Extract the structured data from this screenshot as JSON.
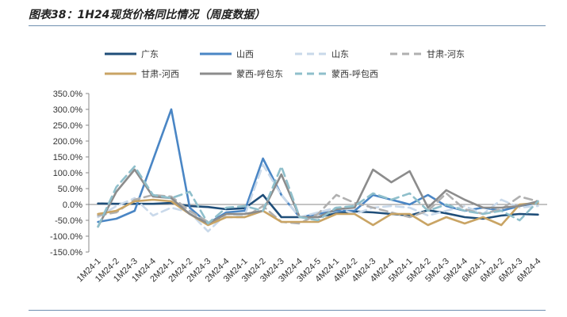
{
  "page": {
    "title": "图表38：1H24现货价格同比情况（周度数据）"
  },
  "chart_data": {
    "type": "line",
    "title": "图表38：1H24现货价格同比情况（周度数据）",
    "xlabel": "",
    "ylabel": "",
    "ylim": [
      -150,
      350
    ],
    "y_ticks": [
      "350.0%",
      "300.0%",
      "250.0%",
      "200.0%",
      "150.0%",
      "100.0%",
      "50.0%",
      "0.0%",
      "-50.0%",
      "-100.0%",
      "-150.0%"
    ],
    "categories": [
      "1M24-1",
      "1M24-2",
      "1M24-3",
      "1M24-4",
      "2M24-1",
      "2M24-2",
      "2M24-3",
      "2M24-4",
      "3M24-1",
      "3M24-2",
      "3M24-3",
      "3M24-4",
      "3M24-5",
      "4M24-1",
      "4M24-2",
      "4M24-3",
      "4M24-4",
      "5M24-1",
      "5M24-2",
      "5M24-3",
      "5M24-4",
      "6M24-1",
      "6M24-2",
      "6M24-3",
      "6M24-4"
    ],
    "grid": false,
    "legend_position": "top",
    "series": [
      {
        "name": "广东",
        "color": "#1f4e79",
        "dash": "solid",
        "values": [
          3,
          2,
          2,
          2,
          5,
          -5,
          -8,
          -15,
          -12,
          30,
          -40,
          -40,
          -40,
          -28,
          -22,
          -25,
          -30,
          -35,
          -18,
          -28,
          -40,
          -45,
          -35,
          -30,
          -32
        ]
      },
      {
        "name": "山西",
        "color": "#4a86c5",
        "dash": "solid",
        "values": [
          -55,
          -45,
          -20,
          140,
          300,
          -10,
          -60,
          -25,
          -20,
          145,
          30,
          -40,
          -30,
          -20,
          -20,
          30,
          15,
          0,
          30,
          -5,
          -20,
          -10,
          -20,
          -5,
          5
        ]
      },
      {
        "name": "山东",
        "color": "#c9d9ea",
        "dash": "dash",
        "values": [
          -40,
          -5,
          20,
          -35,
          -10,
          -25,
          -85,
          -30,
          -35,
          125,
          30,
          -40,
          -25,
          -10,
          -30,
          -10,
          -5,
          -10,
          -35,
          -20,
          -5,
          -30,
          15,
          -10,
          -5
        ]
      },
      {
        "name": "甘肃-河东",
        "color": "#b0b0b0",
        "dash": "dash",
        "values": [
          -35,
          -25,
          15,
          30,
          25,
          -20,
          -55,
          -40,
          -40,
          -5,
          -55,
          -60,
          -30,
          30,
          5,
          -10,
          -25,
          -40,
          -20,
          35,
          -15,
          -30,
          -15,
          25,
          10
        ]
      },
      {
        "name": "甘肃-河西",
        "color": "#c9a464",
        "dash": "solid",
        "values": [
          -30,
          -20,
          10,
          15,
          10,
          -30,
          -65,
          -40,
          -40,
          -20,
          -55,
          -55,
          -55,
          -30,
          -30,
          -65,
          -30,
          -30,
          -65,
          -40,
          -60,
          -40,
          -65,
          0,
          5
        ]
      },
      {
        "name": "蒙西-呼包东",
        "color": "#8c8c8c",
        "dash": "solid",
        "values": [
          -70,
          40,
          110,
          25,
          20,
          -30,
          -60,
          -30,
          -30,
          -20,
          95,
          -40,
          -40,
          -15,
          -10,
          110,
          70,
          105,
          -10,
          45,
          15,
          -10,
          -10,
          -5,
          10
        ]
      },
      {
        "name": "蒙西-呼包西",
        "color": "#8fbfcb",
        "dash": "dash",
        "values": [
          -70,
          55,
          120,
          30,
          20,
          40,
          -60,
          -10,
          -5,
          -20,
          120,
          -40,
          -50,
          -10,
          -5,
          35,
          15,
          35,
          -20,
          0,
          -20,
          -30,
          -20,
          -50,
          10
        ]
      }
    ]
  }
}
